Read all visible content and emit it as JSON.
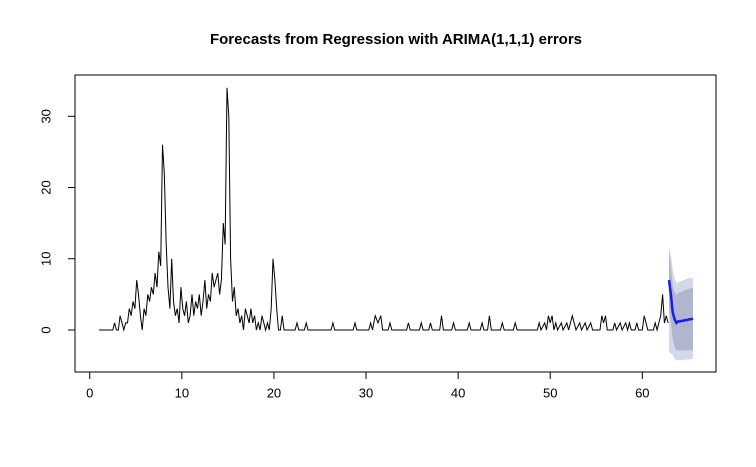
{
  "chart_data": {
    "type": "line",
    "title": "Forecasts from Regression with ARIMA(1,1,1) errors",
    "xlim": [
      -1.6,
      68.0
    ],
    "ylim": [
      -5.9,
      35.8
    ],
    "xticks": [
      0,
      10,
      20,
      30,
      40,
      50,
      60
    ],
    "yticks": [
      0,
      10,
      20,
      30
    ],
    "color": "#000000",
    "x": [
      1,
      2.5,
      2.7,
      2.9,
      3.1,
      3.3,
      3.5,
      3.7,
      3.9,
      4.1,
      4.3,
      4.5,
      4.7,
      4.9,
      5.1,
      5.3,
      5.5,
      5.7,
      5.9,
      6.1,
      6.3,
      6.5,
      6.7,
      6.9,
      7.1,
      7.3,
      7.5,
      7.7,
      7.9,
      8.1,
      8.3,
      8.5,
      8.7,
      8.9,
      9.1,
      9.3,
      9.5,
      9.7,
      9.9,
      10.1,
      10.3,
      10.5,
      10.7,
      10.9,
      11.1,
      11.3,
      11.5,
      11.7,
      11.9,
      12.1,
      12.3,
      12.5,
      12.7,
      12.9,
      13.1,
      13.3,
      13.5,
      13.7,
      13.9,
      14.1,
      14.3,
      14.5,
      14.7,
      14.9,
      15.1,
      15.3,
      15.5,
      15.7,
      15.9,
      16.1,
      16.3,
      16.5,
      16.7,
      16.9,
      17.1,
      17.3,
      17.5,
      17.7,
      17.9,
      18.1,
      18.3,
      18.5,
      18.7,
      18.9,
      19.1,
      19.3,
      19.5,
      19.7,
      19.9,
      20.1,
      20.3,
      20.5,
      20.7,
      20.9,
      21.1,
      22.3,
      22.5,
      22.7,
      23.3,
      23.5,
      23.7,
      26.2,
      26.4,
      26.6,
      28.6,
      28.8,
      29,
      30.3,
      30.5,
      30.7,
      31,
      31.3,
      31.6,
      31.8,
      32.4,
      32.6,
      32.8,
      34.4,
      34.6,
      34.8,
      35.8,
      36,
      36.2,
      36.8,
      37,
      37.2,
      38,
      38.2,
      38.4,
      39.3,
      39.5,
      39.7,
      41,
      41.2,
      41.4,
      42.4,
      42.6,
      42.8,
      43.2,
      43.4,
      43.6,
      44.6,
      44.8,
      45,
      46,
      46.2,
      46.4,
      48.6,
      48.8,
      49,
      49.4,
      49.6,
      49.8,
      50,
      50.2,
      50.4,
      50.6,
      50.8,
      51.2,
      51.4,
      51.8,
      52,
      52.4,
      52.6,
      52.8,
      53.2,
      53.4,
      53.8,
      54,
      54.4,
      54.6,
      55.4,
      55.6,
      55.8,
      56,
      56.2,
      56.8,
      57,
      57.2,
      57.6,
      57.8,
      58.2,
      58.4,
      58.6,
      58.8,
      59.2,
      59.4,
      59.6,
      60,
      60.2,
      60.4,
      60.6,
      61.2,
      61.4,
      61.6,
      62,
      62.2,
      62.4,
      62.6,
      62.8
    ],
    "values": [
      0,
      0,
      1,
      0,
      0,
      2,
      1,
      0,
      1,
      1,
      3,
      2,
      4,
      3,
      7,
      5,
      2,
      0,
      3,
      2,
      5,
      4,
      6,
      5,
      8,
      6,
      11,
      9,
      26,
      22,
      12,
      6,
      3,
      10,
      4,
      2,
      3,
      1,
      6,
      3,
      2,
      4,
      1,
      2,
      5,
      2,
      4,
      3,
      5,
      2,
      4,
      7,
      3,
      5,
      4,
      8,
      6,
      7,
      8,
      5,
      7,
      15,
      12,
      34,
      30,
      10,
      4,
      6,
      2,
      3,
      1,
      2,
      0,
      3,
      2,
      1,
      3,
      1,
      2,
      0,
      1,
      0,
      2,
      1,
      0,
      1,
      0,
      3,
      10,
      7,
      3,
      0,
      0,
      2,
      0,
      0,
      1,
      0,
      0,
      1,
      0,
      0,
      1,
      0,
      0,
      1,
      0,
      0,
      1,
      0,
      2,
      1,
      2,
      0,
      0,
      1,
      0,
      0,
      1,
      0,
      0,
      1,
      0,
      0,
      1,
      0,
      0,
      2,
      0,
      0,
      1,
      0,
      0,
      1,
      0,
      0,
      1,
      0,
      0,
      2,
      0,
      0,
      1,
      0,
      0,
      1,
      0,
      0,
      1,
      0,
      1,
      0,
      2,
      1,
      2,
      0,
      1,
      0,
      1,
      0,
      1,
      0,
      2,
      1,
      0,
      1,
      0,
      1,
      0,
      1,
      0,
      0,
      2,
      1,
      2,
      0,
      0,
      1,
      0,
      1,
      0,
      1,
      0,
      1,
      0,
      0,
      1,
      0,
      0,
      2,
      1,
      0,
      0,
      1,
      0,
      2,
      5,
      1,
      2,
      1
    ],
    "forecast": {
      "color": "#1a1aee",
      "x": [
        62.9,
        63.1,
        63.3,
        63.5,
        63.7,
        63.9,
        64.1,
        64.3,
        64.5,
        64.7,
        64.9,
        65.1,
        65.3,
        65.5
      ],
      "values": [
        7,
        5,
        2.5,
        1.5,
        1,
        1.2,
        1.2,
        1.3,
        1.3,
        1.4,
        1.4,
        1.5,
        1.5,
        1.6
      ],
      "interval_80": {
        "color": "#b1b5ce",
        "lower": [
          3,
          1,
          -1.2,
          -2.3,
          -2.9,
          -2.8,
          -2.9,
          -2.8,
          -2.9,
          -2.8,
          -2.9,
          -2.8,
          -2.9,
          -2.8
        ],
        "upper": [
          11,
          9,
          6.2,
          5.3,
          4.9,
          5.2,
          5.3,
          5.4,
          5.5,
          5.6,
          5.7,
          5.8,
          5.9,
          6
        ]
      },
      "interval_95": {
        "color": "#d5d8e6",
        "lower": [
          -3,
          -3.3,
          -3.5,
          -4,
          -4.3,
          -4.2,
          -4.3,
          -4.2,
          -4.3,
          -4.1,
          -4.2,
          -4.1,
          -4.1,
          -4
        ],
        "upper": [
          11.5,
          10.5,
          8.5,
          7.2,
          6.6,
          6.7,
          6.8,
          6.9,
          7,
          7.1,
          7.2,
          7.3,
          7.3,
          7.4
        ]
      }
    }
  }
}
